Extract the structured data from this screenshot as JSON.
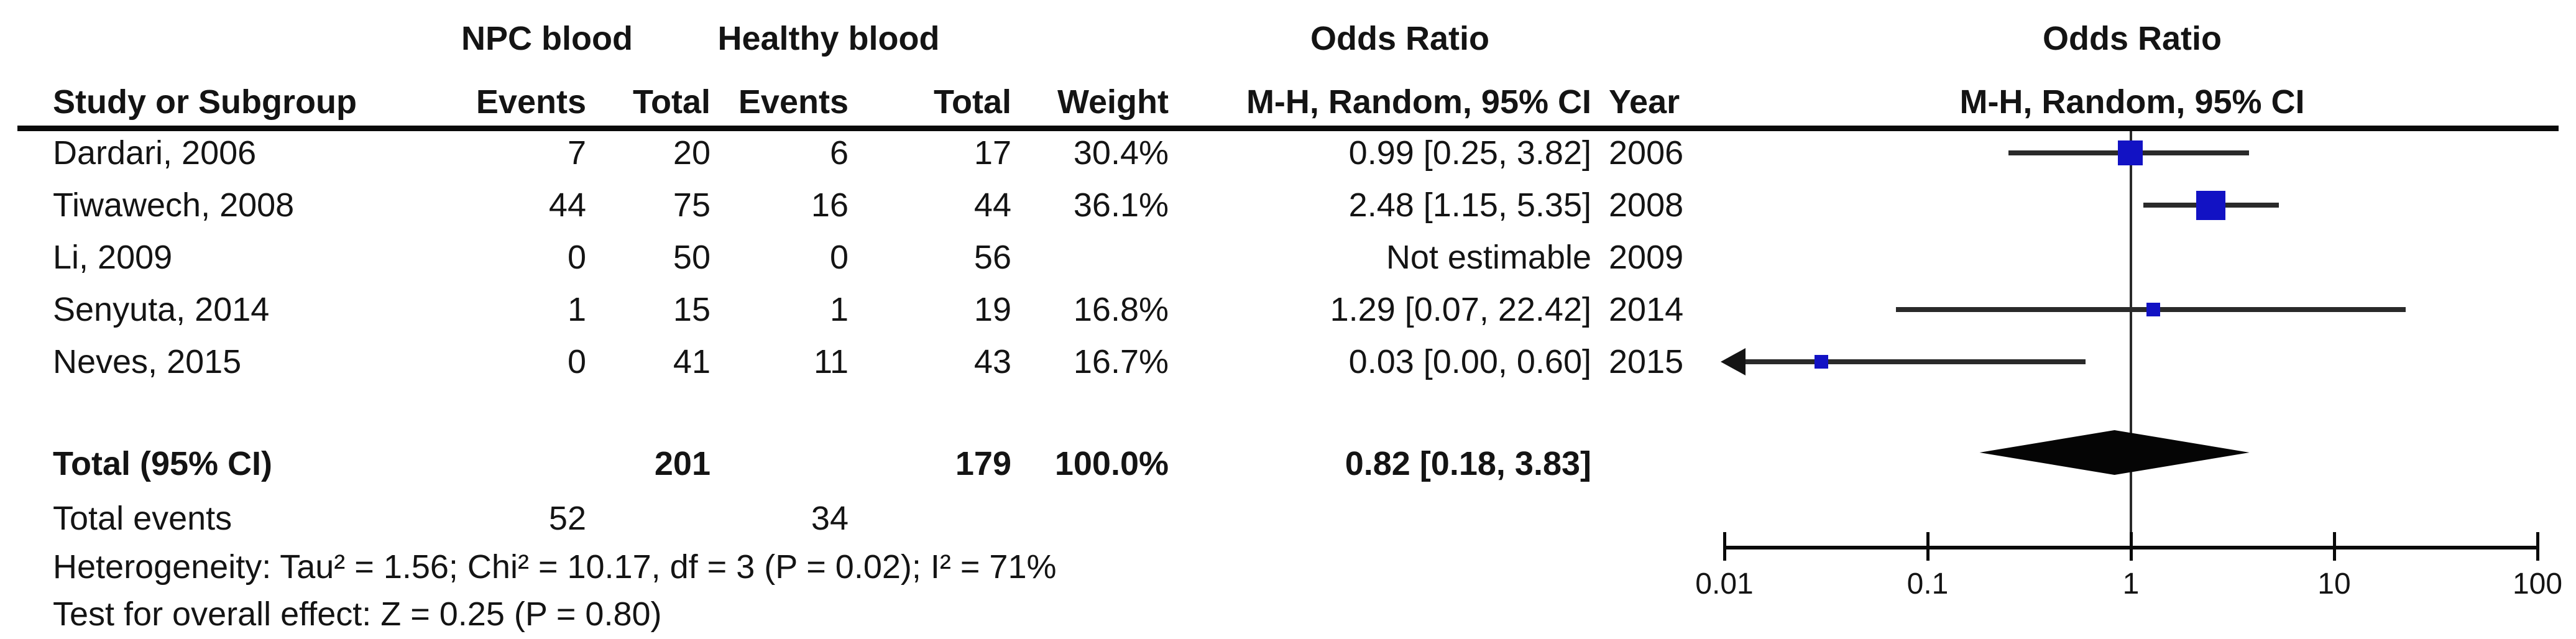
{
  "header": {
    "group1_label": "NPC blood",
    "group2_label": "Healthy blood",
    "or_col_title": "Odds Ratio",
    "plot_title": "Odds Ratio",
    "study_col": "Study or Subgroup",
    "events_col_1": "Events",
    "total_col_1": "Total",
    "events_col_2": "Events",
    "total_col_2": "Total",
    "weight_col": "Weight",
    "or_method_col": "M-H, Random, 95% CI",
    "year_col": "Year",
    "plot_method_col": "M-H, Random, 95% CI"
  },
  "footer": {
    "total_events_label": "Total events",
    "total_events_group1": "52",
    "total_events_group2": "34",
    "heterogeneity": "Heterogeneity: Tau² = 1.56; Chi² = 10.17, df = 3 (P = 0.02); I² = 71%",
    "overall_effect": "Test for overall effect: Z = 0.25 (P = 0.80)"
  },
  "chart_data": {
    "type": "forest-plot",
    "effect_measure": "Odds Ratio, M-H, Random, 95% CI",
    "x_axis": {
      "scale": "log",
      "min": 0.01,
      "max": 100,
      "tick_labels": [
        "0.01",
        "0.1",
        "1",
        "10",
        "100"
      ],
      "tick_values": [
        0.01,
        0.1,
        1,
        10,
        100
      ]
    },
    "marker_color": "#1212c4",
    "rows": [
      {
        "study": "Dardari, 2006",
        "events1": "7",
        "total1": "20",
        "events2": "6",
        "total2": "17",
        "weight": "30.4%",
        "or_text": "0.99 [0.25, 3.82]",
        "year": "2006",
        "estimable": true,
        "or": 0.99,
        "ci_low": 0.25,
        "ci_high": 3.82
      },
      {
        "study": "Tiwawech, 2008",
        "events1": "44",
        "total1": "75",
        "events2": "16",
        "total2": "44",
        "weight": "36.1%",
        "or_text": "2.48 [1.15, 5.35]",
        "year": "2008",
        "estimable": true,
        "or": 2.48,
        "ci_low": 1.15,
        "ci_high": 5.35
      },
      {
        "study": "Li, 2009",
        "events1": "0",
        "total1": "50",
        "events2": "0",
        "total2": "56",
        "weight": "",
        "or_text": "Not estimable",
        "year": "2009",
        "estimable": false
      },
      {
        "study": "Senyuta, 2014",
        "events1": "1",
        "total1": "15",
        "events2": "1",
        "total2": "19",
        "weight": "16.8%",
        "or_text": "1.29 [0.07, 22.42]",
        "year": "2014",
        "estimable": true,
        "or": 1.29,
        "ci_low": 0.07,
        "ci_high": 22.42
      },
      {
        "study": "Neves, 2015",
        "events1": "0",
        "total1": "41",
        "events2": "11",
        "total2": "43",
        "weight": "16.7%",
        "or_text": "0.03 [0.00, 0.60]",
        "year": "2015",
        "estimable": true,
        "or": 0.03,
        "ci_low": 0.0,
        "ci_high": 0.6
      }
    ],
    "total": {
      "label": "Total (95% CI)",
      "total1": "201",
      "total2": "179",
      "weight": "100.0%",
      "or_text": "0.82 [0.18, 3.83]",
      "or": 0.82,
      "ci_low": 0.18,
      "ci_high": 3.83
    }
  }
}
